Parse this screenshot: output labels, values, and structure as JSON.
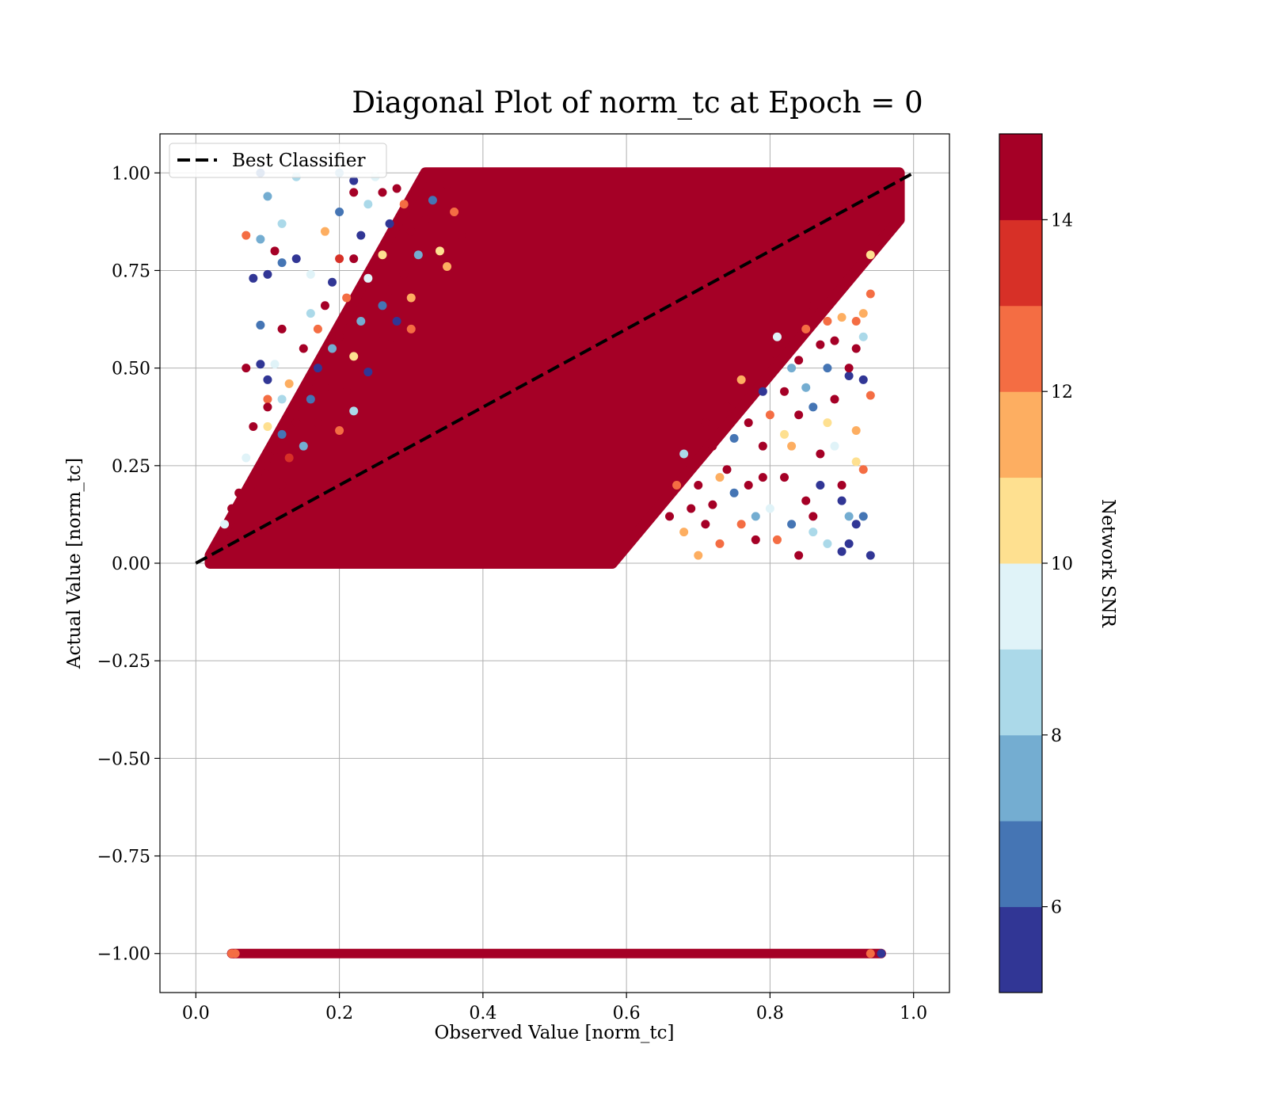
{
  "chart_data": {
    "type": "scatter",
    "title": "Diagonal Plot of norm_tc at Epoch = 0",
    "xlabel": "Observed Value [norm_tc]",
    "ylabel": "Actual Value [norm_tc]",
    "xlim": [
      -0.05,
      1.05
    ],
    "ylim": [
      -1.1,
      1.1
    ],
    "x_ticks": [
      "0.0",
      "0.2",
      "0.4",
      "0.6",
      "0.8",
      "1.0"
    ],
    "x_tick_values": [
      0.0,
      0.2,
      0.4,
      0.6,
      0.8,
      1.0
    ],
    "y_ticks": [
      "−1.00",
      "−0.75",
      "−0.50",
      "−0.25",
      "0.00",
      "0.25",
      "0.50",
      "0.75",
      "1.00"
    ],
    "y_tick_values": [
      -1.0,
      -0.75,
      -0.5,
      -0.25,
      0.0,
      0.25,
      0.5,
      0.75,
      1.0
    ],
    "grid": true,
    "legend": {
      "placement": "top-left",
      "entries": [
        {
          "label": "Best Classifier",
          "style": "dashed",
          "color": "#000000"
        }
      ]
    },
    "reference_line": {
      "label": "Best Classifier",
      "x": [
        0.0,
        1.0
      ],
      "y": [
        0.0,
        1.0
      ]
    },
    "dense_regions": [
      {
        "description": "diagonal band",
        "polygon": [
          [
            0.02,
            0.0
          ],
          [
            0.58,
            0.0
          ],
          [
            0.98,
            0.88
          ],
          [
            0.98,
            1.0
          ],
          [
            0.32,
            1.0
          ],
          [
            0.02,
            0.02
          ]
        ],
        "snr": 15
      },
      {
        "description": "saturated row at -1",
        "x_range": [
          0.05,
          0.955
        ],
        "y": -1.0,
        "snr": 15
      }
    ],
    "scatter_points": [
      [
        0.09,
        1.0,
        6
      ],
      [
        0.1,
        0.94,
        7
      ],
      [
        0.12,
        0.87,
        8
      ],
      [
        0.07,
        0.84,
        12
      ],
      [
        0.09,
        0.83,
        7
      ],
      [
        0.11,
        0.8,
        14
      ],
      [
        0.08,
        0.73,
        5
      ],
      [
        0.1,
        0.74,
        5
      ],
      [
        0.12,
        0.77,
        6
      ],
      [
        0.14,
        0.78,
        5
      ],
      [
        0.09,
        0.61,
        6
      ],
      [
        0.12,
        0.6,
        14
      ],
      [
        0.11,
        0.51,
        9
      ],
      [
        0.07,
        0.5,
        14
      ],
      [
        0.09,
        0.51,
        5
      ],
      [
        0.1,
        0.47,
        5
      ],
      [
        0.1,
        0.42,
        12
      ],
      [
        0.12,
        0.42,
        8
      ],
      [
        0.1,
        0.4,
        14
      ],
      [
        0.08,
        0.35,
        14
      ],
      [
        0.1,
        0.35,
        10
      ],
      [
        0.12,
        0.33,
        6
      ],
      [
        0.11,
        0.29,
        14
      ],
      [
        0.07,
        0.27,
        9
      ],
      [
        0.1,
        0.25,
        14
      ],
      [
        0.13,
        0.27,
        13
      ],
      [
        0.15,
        0.3,
        7
      ],
      [
        0.17,
        0.36,
        14
      ],
      [
        0.16,
        0.42,
        6
      ],
      [
        0.17,
        0.5,
        5
      ],
      [
        0.18,
        0.45,
        14
      ],
      [
        0.19,
        0.55,
        7
      ],
      [
        0.17,
        0.6,
        12
      ],
      [
        0.18,
        0.66,
        14
      ],
      [
        0.19,
        0.72,
        5
      ],
      [
        0.16,
        0.74,
        9
      ],
      [
        0.2,
        0.78,
        13
      ],
      [
        0.18,
        0.85,
        11
      ],
      [
        0.2,
        0.9,
        6
      ],
      [
        0.22,
        0.95,
        14
      ],
      [
        0.24,
        0.92,
        8
      ],
      [
        0.23,
        0.84,
        5
      ],
      [
        0.22,
        0.78,
        14
      ],
      [
        0.24,
        0.73,
        9
      ],
      [
        0.21,
        0.68,
        12
      ],
      [
        0.23,
        0.62,
        7
      ],
      [
        0.2,
        0.58,
        14
      ],
      [
        0.22,
        0.53,
        10
      ],
      [
        0.24,
        0.49,
        5
      ],
      [
        0.21,
        0.44,
        14
      ],
      [
        0.22,
        0.39,
        8
      ],
      [
        0.2,
        0.34,
        12
      ],
      [
        0.25,
        0.58,
        14
      ],
      [
        0.26,
        0.66,
        6
      ],
      [
        0.27,
        0.7,
        14
      ],
      [
        0.26,
        0.79,
        10
      ],
      [
        0.27,
        0.87,
        5
      ],
      [
        0.28,
        0.96,
        14
      ],
      [
        0.25,
        0.99,
        9
      ],
      [
        0.29,
        0.92,
        12
      ],
      [
        0.3,
        0.85,
        14
      ],
      [
        0.31,
        0.79,
        7
      ],
      [
        0.29,
        0.74,
        14
      ],
      [
        0.3,
        0.68,
        11
      ],
      [
        0.28,
        0.62,
        5
      ],
      [
        0.27,
        0.56,
        14
      ],
      [
        0.3,
        0.6,
        12
      ],
      [
        0.33,
        0.72,
        14
      ],
      [
        0.34,
        0.8,
        10
      ],
      [
        0.32,
        0.88,
        14
      ],
      [
        0.33,
        0.93,
        6
      ],
      [
        0.35,
        0.97,
        14
      ],
      [
        0.36,
        0.9,
        12
      ],
      [
        0.37,
        0.84,
        14
      ],
      [
        0.35,
        0.76,
        11
      ],
      [
        0.14,
        0.99,
        8
      ],
      [
        0.2,
        1.0,
        7
      ],
      [
        0.22,
        0.98,
        5
      ],
      [
        0.26,
        0.95,
        14
      ],
      [
        0.15,
        0.55,
        14
      ],
      [
        0.16,
        0.64,
        8
      ],
      [
        0.13,
        0.46,
        11
      ],
      [
        0.14,
        0.36,
        14
      ],
      [
        0.12,
        0.2,
        14
      ],
      [
        0.06,
        0.18,
        14
      ],
      [
        0.05,
        0.14,
        14
      ],
      [
        0.04,
        0.1,
        9
      ],
      [
        0.06,
        0.07,
        14
      ],
      [
        0.66,
        0.12,
        14
      ],
      [
        0.68,
        0.08,
        11
      ],
      [
        0.7,
        0.2,
        14
      ],
      [
        0.68,
        0.28,
        8
      ],
      [
        0.72,
        0.15,
        14
      ],
      [
        0.73,
        0.05,
        12
      ],
      [
        0.74,
        0.24,
        14
      ],
      [
        0.75,
        0.32,
        6
      ],
      [
        0.74,
        0.4,
        14
      ],
      [
        0.76,
        0.47,
        11
      ],
      [
        0.77,
        0.2,
        14
      ],
      [
        0.78,
        0.12,
        7
      ],
      [
        0.79,
        0.3,
        14
      ],
      [
        0.8,
        0.38,
        12
      ],
      [
        0.79,
        0.44,
        5
      ],
      [
        0.8,
        0.52,
        14
      ],
      [
        0.81,
        0.58,
        9
      ],
      [
        0.82,
        0.22,
        14
      ],
      [
        0.83,
        0.1,
        6
      ],
      [
        0.84,
        0.02,
        14
      ],
      [
        0.83,
        0.3,
        11
      ],
      [
        0.84,
        0.38,
        14
      ],
      [
        0.85,
        0.45,
        7
      ],
      [
        0.84,
        0.52,
        14
      ],
      [
        0.85,
        0.6,
        12
      ],
      [
        0.86,
        0.66,
        14
      ],
      [
        0.87,
        0.2,
        5
      ],
      [
        0.86,
        0.12,
        14
      ],
      [
        0.88,
        0.05,
        8
      ],
      [
        0.87,
        0.28,
        14
      ],
      [
        0.88,
        0.36,
        10
      ],
      [
        0.89,
        0.42,
        14
      ],
      [
        0.88,
        0.5,
        6
      ],
      [
        0.89,
        0.57,
        14
      ],
      [
        0.9,
        0.63,
        11
      ],
      [
        0.9,
        0.7,
        14
      ],
      [
        0.91,
        0.48,
        5
      ],
      [
        0.92,
        0.55,
        14
      ],
      [
        0.92,
        0.62,
        12
      ],
      [
        0.93,
        0.47,
        5
      ],
      [
        0.93,
        0.24,
        12
      ],
      [
        0.92,
        0.26,
        10
      ],
      [
        0.91,
        0.12,
        7
      ],
      [
        0.9,
        0.16,
        5
      ],
      [
        0.92,
        0.1,
        5
      ],
      [
        0.93,
        0.12,
        6
      ],
      [
        0.94,
        0.02,
        5
      ],
      [
        0.9,
        0.03,
        5
      ],
      [
        0.91,
        0.05,
        5
      ],
      [
        0.94,
        0.43,
        12
      ],
      [
        0.93,
        0.58,
        8
      ],
      [
        0.94,
        0.69,
        12
      ],
      [
        0.94,
        0.79,
        10
      ],
      [
        0.93,
        0.64,
        11
      ],
      [
        0.91,
        0.5,
        14
      ],
      [
        0.92,
        0.34,
        11
      ],
      [
        0.89,
        0.3,
        9
      ],
      [
        0.9,
        0.2,
        14
      ],
      [
        0.86,
        0.08,
        8
      ],
      [
        0.85,
        0.16,
        14
      ],
      [
        0.81,
        0.06,
        12
      ],
      [
        0.8,
        0.14,
        9
      ],
      [
        0.78,
        0.06,
        14
      ],
      [
        0.76,
        0.1,
        12
      ],
      [
        0.75,
        0.18,
        6
      ],
      [
        0.71,
        0.1,
        14
      ],
      [
        0.7,
        0.02,
        11
      ],
      [
        0.69,
        0.14,
        14
      ],
      [
        0.67,
        0.2,
        12
      ],
      [
        0.72,
        0.3,
        14
      ],
      [
        0.77,
        0.36,
        14
      ],
      [
        0.82,
        0.44,
        14
      ],
      [
        0.83,
        0.5,
        7
      ],
      [
        0.87,
        0.56,
        14
      ],
      [
        0.88,
        0.62,
        12
      ],
      [
        0.86,
        0.4,
        6
      ],
      [
        0.82,
        0.33,
        10
      ],
      [
        0.79,
        0.22,
        14
      ],
      [
        0.73,
        0.22,
        11
      ],
      [
        0.71,
        0.36,
        14
      ]
    ],
    "colorbar": {
      "label": "Network SNR",
      "range": [
        5,
        15
      ],
      "ticks": [
        "6",
        "8",
        "10",
        "12",
        "14"
      ],
      "tick_values": [
        6,
        8,
        10,
        12,
        14
      ],
      "colors": [
        "#313695",
        "#4575b4",
        "#74add1",
        "#abd9e9",
        "#e0f3f8",
        "#fee090",
        "#fdae61",
        "#f46d43",
        "#d73027",
        "#a50026"
      ]
    }
  }
}
